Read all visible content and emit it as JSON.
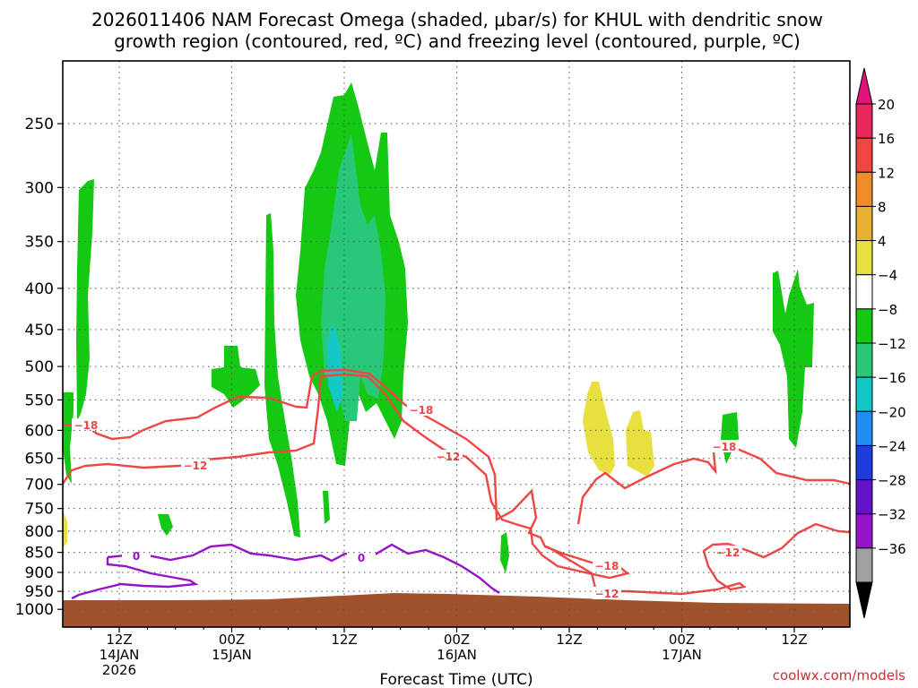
{
  "title_line1": "2026011406 NAM Forecast Omega (shaded, μbar/s) for KHUL with dendritic snow",
  "title_line2": "growth region (contoured, red, ºC) and freezing level (contoured, purple, ºC)",
  "footer_url": "coolwx.com/models",
  "chart_data": {
    "type": "heatmap",
    "title": "2026011406 NAM Forecast Omega (shaded, μbar/s) for KHUL with dendritic snow growth region (contoured, red, ºC) and freezing level (contoured, purple, ºC)",
    "xlabel": "Forecast Time (UTC)",
    "ylabel": "",
    "y_log_pressure": true,
    "ylim": [
      1000,
      200
    ],
    "xlim": [
      "2026-01-14T07Z",
      "2026-01-17T17Z"
    ],
    "grid": "dotted",
    "y_ticks": [
      "250",
      "300",
      "350",
      "400",
      "450",
      "500",
      "550",
      "600",
      "650",
      "700",
      "750",
      "800",
      "850",
      "900",
      "950",
      "1000"
    ],
    "x_ticks": [
      {
        "line1": "12Z",
        "line2": "14JAN",
        "line3": "2026"
      },
      {
        "line1": "00Z",
        "line2": "15JAN",
        "line3": ""
      },
      {
        "line1": "12Z",
        "line2": "",
        "line3": ""
      },
      {
        "line1": "00Z",
        "line2": "16JAN",
        "line3": ""
      },
      {
        "line1": "12Z",
        "line2": "",
        "line3": ""
      },
      {
        "line1": "00Z",
        "line2": "17JAN",
        "line3": ""
      },
      {
        "line1": "12Z",
        "line2": "",
        "line3": ""
      }
    ],
    "colorbar": {
      "labels": [
        "20",
        "16",
        "12",
        "8",
        "4",
        "−4",
        "−8",
        "−12",
        "−16",
        "−20",
        "−24",
        "−28",
        "−32",
        "−36"
      ],
      "colors": [
        "#e8285a",
        "#f04640",
        "#f08c2a",
        "#e8b030",
        "#e8e040",
        "#ffffff",
        "#14c814",
        "#28c878",
        "#14c8c8",
        "#1e8cf0",
        "#1e3cdc",
        "#6414c8",
        "#9614c8",
        "#a0a0a0"
      ],
      "top_arrow_color": "#e01478",
      "bottom_arrow_color": "#000000"
    },
    "contour_labels": [
      {
        "text": "−18",
        "kind": "dgz"
      },
      {
        "text": "−18",
        "kind": "dgz"
      },
      {
        "text": "−18",
        "kind": "dgz"
      },
      {
        "text": "−18",
        "kind": "dgz"
      },
      {
        "text": "−12",
        "kind": "dgz"
      },
      {
        "text": "−12",
        "kind": "dgz"
      },
      {
        "text": "−12",
        "kind": "dgz"
      },
      {
        "text": "−12",
        "kind": "dgz"
      },
      {
        "text": "0",
        "kind": "freezing"
      },
      {
        "text": "0",
        "kind": "freezing"
      }
    ],
    "colors": {
      "dgz_contour": "#f04646",
      "freezing_contour": "#9614c8",
      "terrain": "#a0522d"
    }
  }
}
